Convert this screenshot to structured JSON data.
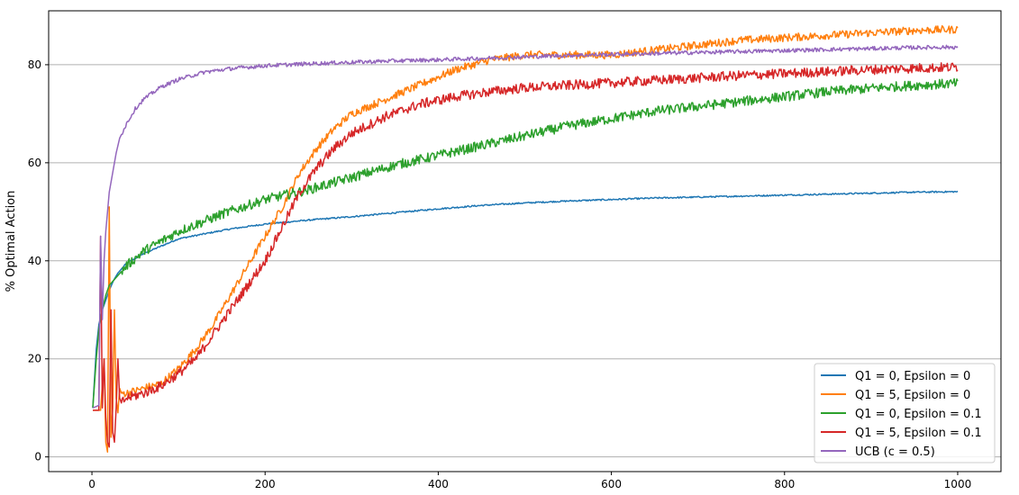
{
  "chart_data": {
    "type": "line",
    "title": "",
    "xlabel": "",
    "ylabel": "% Optimal Action",
    "xlim": [
      -50,
      1050
    ],
    "ylim": [
      -3,
      91
    ],
    "xticks": [
      0,
      200,
      400,
      600,
      800,
      1000
    ],
    "yticks": [
      0,
      20,
      40,
      60,
      80
    ],
    "grid": "horizontal",
    "legend_position": "lower-right",
    "series": [
      {
        "name": "Q1 = 0, Epsilon = 0",
        "color": "#1f77b4",
        "x": [
          1,
          3,
          5,
          8,
          12,
          16,
          20,
          25,
          30,
          40,
          50,
          60,
          80,
          100,
          130,
          160,
          200,
          250,
          300,
          350,
          400,
          450,
          500,
          550,
          600,
          650,
          700,
          750,
          800,
          850,
          900,
          950,
          1000
        ],
        "y": [
          10,
          16,
          22,
          27,
          30,
          32,
          34,
          36,
          37.5,
          39.5,
          40.5,
          41.5,
          43,
          44.5,
          45.5,
          46.5,
          47.5,
          48.3,
          49,
          49.8,
          50.6,
          51.3,
          51.8,
          52.2,
          52.5,
          52.8,
          53,
          53.2,
          53.4,
          53.6,
          53.8,
          54,
          54.1
        ],
        "noise": 0.15
      },
      {
        "name": "Q1 = 5, Epsilon = 0",
        "color": "#ff7f0e",
        "x": [
          1,
          10,
          14,
          16,
          18,
          20,
          22,
          24,
          26,
          28,
          30,
          32,
          34,
          40,
          60,
          80,
          100,
          120,
          140,
          160,
          180,
          200,
          220,
          240,
          260,
          280,
          300,
          340,
          380,
          420,
          460,
          500,
          550,
          600,
          650,
          700,
          750,
          800,
          850,
          900,
          950,
          1000
        ],
        "y": [
          9.5,
          9.5,
          20,
          3,
          1,
          51,
          4,
          10,
          30,
          12,
          9,
          14,
          13,
          13,
          14,
          15,
          18,
          22,
          27,
          33,
          39,
          45,
          51,
          58,
          63,
          67,
          70,
          73,
          76,
          79,
          81,
          82,
          82,
          82,
          83,
          84,
          85,
          85.5,
          86,
          86.5,
          87,
          87.2
        ],
        "noise": 0.8
      },
      {
        "name": "Q1 = 0, Epsilon = 0.1",
        "color": "#2ca02c",
        "x": [
          1,
          3,
          5,
          8,
          12,
          16,
          20,
          30,
          40,
          60,
          80,
          100,
          150,
          200,
          250,
          300,
          350,
          400,
          450,
          500,
          550,
          600,
          650,
          700,
          750,
          800,
          850,
          900,
          950,
          1000
        ],
        "y": [
          10,
          15,
          20,
          26,
          30,
          33,
          35,
          37,
          39,
          42,
          44,
          46,
          49.5,
          52.5,
          54.5,
          57,
          59.5,
          61.5,
          63.5,
          65.5,
          67.5,
          69,
          70.5,
          71.5,
          72.5,
          73.5,
          74.5,
          75.2,
          75.8,
          76.2
        ],
        "noise": 1.0
      },
      {
        "name": "Q1 = 5, Epsilon = 0.1",
        "color": "#d62728",
        "x": [
          1,
          8,
          10,
          12,
          14,
          16,
          18,
          20,
          22,
          24,
          26,
          28,
          30,
          32,
          34,
          40,
          60,
          80,
          100,
          120,
          140,
          160,
          180,
          200,
          220,
          240,
          260,
          280,
          300,
          340,
          380,
          420,
          460,
          500,
          550,
          600,
          650,
          700,
          750,
          800,
          850,
          900,
          950,
          1000
        ],
        "y": [
          9.5,
          9.5,
          45,
          10,
          20,
          8,
          3,
          2,
          30,
          5,
          3,
          10,
          20,
          12,
          11,
          12,
          13,
          14.5,
          17,
          20,
          25,
          30,
          35,
          40,
          47,
          54,
          59,
          63,
          66,
          69.5,
          72,
          73.5,
          74.5,
          75.3,
          75.8,
          76.3,
          76.8,
          77.3,
          77.8,
          78.2,
          78.6,
          79,
          79.3,
          79.5
        ],
        "noise": 1.0
      },
      {
        "name": "UCB (c = 0.5)",
        "color": "#9467bd",
        "x": [
          1,
          8,
          10,
          12,
          14,
          16,
          18,
          20,
          24,
          28,
          32,
          40,
          50,
          60,
          80,
          100,
          130,
          160,
          200,
          250,
          300,
          350,
          400,
          450,
          500,
          550,
          600,
          650,
          700,
          750,
          800,
          850,
          900,
          950,
          1000
        ],
        "y": [
          10,
          10.5,
          45,
          28,
          40,
          46,
          50,
          54,
          58,
          62,
          65,
          68,
          71,
          73,
          75.5,
          77,
          78.5,
          79.2,
          79.8,
          80.2,
          80.5,
          80.8,
          81,
          81.3,
          81.6,
          81.9,
          82.1,
          82.3,
          82.5,
          82.7,
          82.9,
          83.1,
          83.3,
          83.5,
          83.6
        ],
        "noise": 0.4
      }
    ]
  }
}
